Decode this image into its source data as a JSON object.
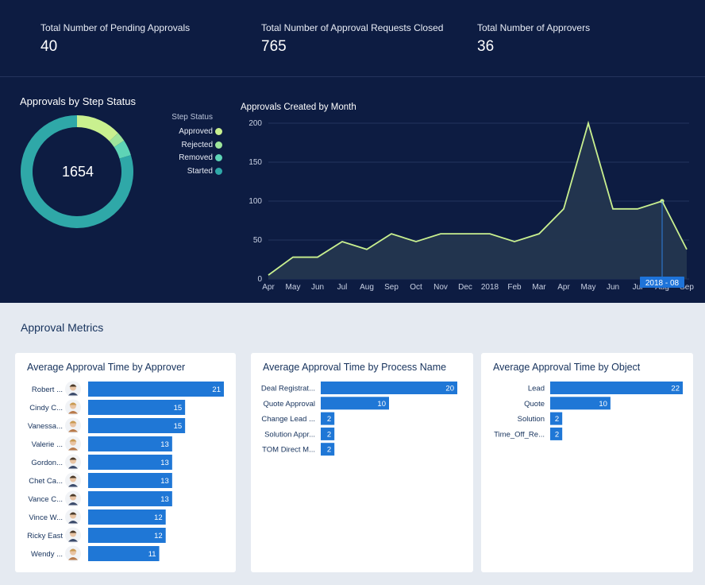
{
  "kpis": [
    {
      "label": "Total Number of Pending Approvals",
      "value": "40"
    },
    {
      "label": "Total Number of Approval Requests Closed",
      "value": "765"
    },
    {
      "label": "Total Number of Approvers",
      "value": "36"
    }
  ],
  "colors": {
    "dark_bg": "#0d1c42",
    "light_bg": "#e5eaf1",
    "bar": "#1f77d6",
    "line": "#c9f08f",
    "approved": "#c9f08f",
    "rejected": "#9ee59b",
    "removed": "#5ed4b6",
    "started": "#2fa8a8"
  },
  "section_title": "Approval Metrics",
  "chart_data": [
    {
      "type": "pie",
      "title": "Approvals by Step Status",
      "center_label": "1654",
      "legend_title": "Step Status",
      "legend_position": "right",
      "slices": [
        {
          "label": "Approved",
          "value": 215
        },
        {
          "label": "Rejected",
          "value": 45
        },
        {
          "label": "Removed",
          "value": 75
        },
        {
          "label": "Started",
          "value": 1319
        }
      ]
    },
    {
      "type": "area",
      "title": "Approvals Created by Month",
      "categories": [
        "Apr",
        "May",
        "Jun",
        "Jul",
        "Aug",
        "Sep",
        "Oct",
        "Nov",
        "Dec",
        "2018",
        "Feb",
        "Mar",
        "Apr",
        "May",
        "Jun",
        "Jul",
        "Aug",
        "Sep"
      ],
      "values": [
        5,
        28,
        28,
        48,
        38,
        58,
        48,
        58,
        58,
        58,
        48,
        58,
        90,
        200,
        90,
        90,
        100,
        38
      ],
      "ylim": [
        0,
        200
      ],
      "yticks": [
        0,
        50,
        100,
        150,
        200
      ],
      "grid": true,
      "tooltip": {
        "index": 16,
        "label": "2018 - 08"
      }
    },
    {
      "type": "bar",
      "orientation": "horizontal",
      "title": "Average Approval Time by Approver",
      "categories": [
        "Robert ...",
        "Cindy C...",
        "Vanessa...",
        "Valerie ...",
        "Gordon...",
        "Chet Ca...",
        "Vance C...",
        "Vince W...",
        "Ricky East",
        "Wendy ..."
      ],
      "values": [
        21,
        15,
        15,
        13,
        13,
        13,
        13,
        12,
        12,
        11
      ],
      "avatars": [
        "m",
        "f",
        "f",
        "f",
        "m",
        "m",
        "m",
        "m",
        "m",
        "f"
      ],
      "xlim": [
        0,
        21
      ]
    },
    {
      "type": "bar",
      "orientation": "horizontal",
      "title": "Average Approval Time by Process Name",
      "categories": [
        "Deal Registrat...",
        "Quote Approval",
        "Change Lead ...",
        "Solution Appr...",
        "TOM Direct M..."
      ],
      "values": [
        20,
        10,
        2,
        2,
        2
      ],
      "xlim": [
        0,
        20
      ]
    },
    {
      "type": "bar",
      "orientation": "horizontal",
      "title": "Average Approval Time by Object",
      "categories": [
        "Lead",
        "Quote",
        "Solution",
        "Time_Off_Re..."
      ],
      "values": [
        22,
        10,
        2,
        2
      ],
      "xlim": [
        0,
        22
      ]
    }
  ]
}
